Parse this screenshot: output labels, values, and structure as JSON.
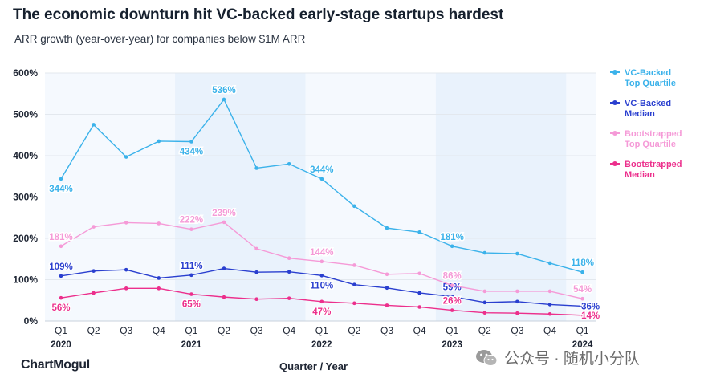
{
  "title": "The economic downturn hit VC-backed early-stage startups hardest",
  "subtitle": "ARR growth (year-over-year) for companies below $1M ARR",
  "brand": "ChartMogul",
  "watermark": "公众号 · 随机小分队",
  "chart_data": {
    "type": "line",
    "xlabel": "Quarter / Year",
    "ylabel": "",
    "ylim": [
      0,
      600
    ],
    "yticks": [
      "0%",
      "100%",
      "200%",
      "300%",
      "400%",
      "500%",
      "600%"
    ],
    "categories": [
      "Q1",
      "Q2",
      "Q3",
      "Q4",
      "Q1",
      "Q2",
      "Q3",
      "Q4",
      "Q1",
      "Q2",
      "Q3",
      "Q4",
      "Q1",
      "Q2",
      "Q3",
      "Q4",
      "Q1"
    ],
    "years": [
      {
        "label": "2020",
        "index": 0
      },
      {
        "label": "2021",
        "index": 4
      },
      {
        "label": "2022",
        "index": 8
      },
      {
        "label": "2023",
        "index": 12
      },
      {
        "label": "2024",
        "index": 16
      }
    ],
    "shaded_years": [
      1,
      3
    ],
    "grid": true,
    "legend_position": "right",
    "series": [
      {
        "name": "VC-Backed Top Quartile",
        "legend_lines": [
          "VC-Backed",
          "Top Quartile"
        ],
        "color": "#3bb2ea",
        "values": [
          344,
          475,
          397,
          435,
          434,
          536,
          370,
          380,
          344,
          278,
          225,
          215,
          181,
          165,
          163,
          140,
          118
        ],
        "labels": [
          {
            "i": 0,
            "text": "344%",
            "pos": "below"
          },
          {
            "i": 4,
            "text": "434%",
            "pos": "below"
          },
          {
            "i": 5,
            "text": "536%",
            "pos": "above"
          },
          {
            "i": 8,
            "text": "344%",
            "pos": "above"
          },
          {
            "i": 12,
            "text": "181%",
            "pos": "above"
          },
          {
            "i": 16,
            "text": "118%",
            "pos": "above"
          }
        ]
      },
      {
        "name": "VC-Backed Median",
        "legend_lines": [
          "VC-Backed",
          "Median"
        ],
        "color": "#2a3fcf",
        "values": [
          109,
          121,
          124,
          104,
          111,
          127,
          118,
          119,
          110,
          88,
          80,
          68,
          59,
          45,
          47,
          40,
          36
        ],
        "labels": [
          {
            "i": 0,
            "text": "109%",
            "pos": "above"
          },
          {
            "i": 4,
            "text": "111%",
            "pos": "above"
          },
          {
            "i": 8,
            "text": "110%",
            "pos": "below"
          },
          {
            "i": 12,
            "text": "59%",
            "pos": "above"
          },
          {
            "i": 16,
            "text": "36%",
            "pos": "right"
          }
        ]
      },
      {
        "name": "Bootstrapped Top Quartile",
        "legend_lines": [
          "Bootstrapped",
          "Top Quartile"
        ],
        "color": "#f59ad7",
        "values": [
          181,
          228,
          238,
          236,
          222,
          239,
          175,
          152,
          144,
          135,
          113,
          115,
          86,
          72,
          72,
          72,
          54
        ],
        "labels": [
          {
            "i": 0,
            "text": "181%",
            "pos": "above"
          },
          {
            "i": 4,
            "text": "222%",
            "pos": "above"
          },
          {
            "i": 5,
            "text": "239%",
            "pos": "above"
          },
          {
            "i": 8,
            "text": "144%",
            "pos": "above"
          },
          {
            "i": 12,
            "text": "86%",
            "pos": "above"
          },
          {
            "i": 16,
            "text": "54%",
            "pos": "above"
          }
        ]
      },
      {
        "name": "Bootstrapped Median",
        "legend_lines": [
          "Bootstrapped",
          "Median"
        ],
        "color": "#ec2f8c",
        "values": [
          56,
          68,
          79,
          79,
          65,
          58,
          53,
          55,
          47,
          43,
          38,
          34,
          26,
          20,
          19,
          17,
          14
        ],
        "labels": [
          {
            "i": 0,
            "text": "56%",
            "pos": "below"
          },
          {
            "i": 4,
            "text": "65%",
            "pos": "below"
          },
          {
            "i": 8,
            "text": "47%",
            "pos": "below"
          },
          {
            "i": 12,
            "text": "26%",
            "pos": "above"
          },
          {
            "i": 16,
            "text": "14%",
            "pos": "right"
          }
        ]
      }
    ]
  }
}
